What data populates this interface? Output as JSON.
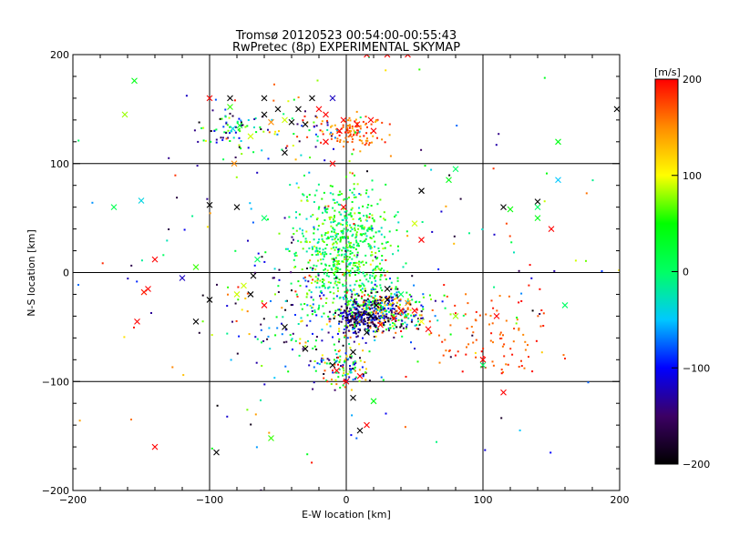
{
  "chart_data": {
    "type": "scatter",
    "title": "Tromsø 20120523 00:54:00-00:55:43",
    "subtitle": "RwPretec (8p) EXPERIMENTAL SKYMAP",
    "xlabel": "E-W location [km]",
    "ylabel": "N-S location [km]",
    "xlim": [
      -200,
      200
    ],
    "ylim": [
      -200,
      200
    ],
    "x_ticks": [
      -200,
      -100,
      0,
      100,
      200
    ],
    "y_ticks": [
      -200,
      -100,
      0,
      100,
      200
    ],
    "x_tick_labels": [
      "−200",
      "−100",
      "0",
      "100",
      "200"
    ],
    "y_tick_labels": [
      "−200",
      "−100",
      "0",
      "100",
      "200"
    ],
    "grid": true,
    "colorbar": {
      "label": "[m/s]",
      "range": [
        -200,
        200
      ],
      "ticks": [
        200,
        100,
        0,
        -100,
        -200
      ],
      "tick_labels": [
        "200",
        "100",
        "0",
        "−100",
        "−200"
      ],
      "colormap": [
        "#000000",
        "#3c0064",
        "#0000ff",
        "#00c8ff",
        "#00ff64",
        "#00ff00",
        "#ffff00",
        "#ff8c00",
        "#ff0000"
      ]
    },
    "series": [
      {
        "marker": "dot",
        "clusters": [
          {
            "center": [
              0,
              20
            ],
            "spread": [
              18,
              28
            ],
            "count": 650,
            "value_range": [
              -40,
              90
            ]
          },
          {
            "center": [
              28,
              -35
            ],
            "spread": [
              16,
              10
            ],
            "count": 380,
            "value_range": [
              -200,
              200
            ]
          },
          {
            "center": [
              12,
              -42
            ],
            "spread": [
              10,
              8
            ],
            "count": 200,
            "value_range": [
              -200,
              -80
            ]
          },
          {
            "center": [
              5,
              130
            ],
            "spread": [
              12,
              8
            ],
            "count": 110,
            "value_range": [
              130,
              200
            ]
          },
          {
            "center": [
              -85,
              132
            ],
            "spread": [
              10,
              10
            ],
            "count": 70,
            "value_range": [
              -200,
              100
            ]
          },
          {
            "center": [
              -5,
              -85
            ],
            "spread": [
              10,
              10
            ],
            "count": 120,
            "value_range": [
              -200,
              200
            ]
          },
          {
            "center": [
              110,
              -60
            ],
            "spread": [
              22,
              18
            ],
            "count": 90,
            "value_range": [
              150,
              200
            ]
          },
          {
            "center": [
              -30,
              -30
            ],
            "spread": [
              30,
              30
            ],
            "count": 160,
            "value_range": [
              -200,
              200
            ]
          },
          {
            "center": [
              -30,
              130
            ],
            "spread": [
              20,
              15
            ],
            "count": 50,
            "value_range": [
              -200,
              200
            ]
          },
          {
            "center": [
              0,
              0
            ],
            "spread": [
              90,
              90
            ],
            "count": 230,
            "value_range": [
              -200,
              200
            ]
          }
        ]
      },
      {
        "marker": "x",
        "points": [
          [
            -170,
            60,
            10
          ],
          [
            -155,
            176,
            40
          ],
          [
            -162,
            145,
            80
          ],
          [
            -150,
            66,
            -40
          ],
          [
            -145,
            -15,
            200
          ],
          [
            -153,
            -45,
            200
          ],
          [
            -148,
            -18,
            190
          ],
          [
            -140,
            12,
            200
          ],
          [
            -140,
            -160,
            200
          ],
          [
            -110,
            5,
            60
          ],
          [
            -100,
            160,
            200
          ],
          [
            -85,
            160,
            -200
          ],
          [
            -100,
            62,
            -200
          ],
          [
            -85,
            152,
            60
          ],
          [
            -83,
            132,
            -40
          ],
          [
            -78,
            135,
            30
          ],
          [
            -82,
            100,
            150
          ],
          [
            -60,
            160,
            -200
          ],
          [
            -55,
            138,
            150
          ],
          [
            -50,
            150,
            -200
          ],
          [
            -45,
            140,
            90
          ],
          [
            -40,
            138,
            -200
          ],
          [
            -35,
            150,
            -200
          ],
          [
            -30,
            136,
            -200
          ],
          [
            -25,
            160,
            -200
          ],
          [
            -20,
            150,
            200
          ],
          [
            -15,
            145,
            200
          ],
          [
            -10,
            160,
            -120
          ],
          [
            -5,
            130,
            200
          ],
          [
            -80,
            60,
            -200
          ],
          [
            -60,
            50,
            0
          ],
          [
            -45,
            110,
            -200
          ],
          [
            -68,
            -3,
            -200
          ],
          [
            -65,
            12,
            0
          ],
          [
            -100,
            -25,
            -200
          ],
          [
            -80,
            -20,
            90
          ],
          [
            -120,
            -5,
            -120
          ],
          [
            -110,
            -45,
            -200
          ],
          [
            -95,
            -165,
            -200
          ],
          [
            -55,
            -152,
            60
          ],
          [
            -75,
            -12,
            90
          ],
          [
            -70,
            -20,
            -200
          ],
          [
            -60,
            -30,
            200
          ],
          [
            -45,
            -50,
            -200
          ],
          [
            -30,
            -70,
            -200
          ],
          [
            -10,
            -85,
            -200
          ],
          [
            5,
            -73,
            -200
          ],
          [
            5,
            -115,
            -200
          ],
          [
            10,
            -145,
            -200
          ],
          [
            15,
            -140,
            200
          ],
          [
            20,
            -118,
            40
          ],
          [
            0,
            -100,
            200
          ],
          [
            -7,
            -90,
            200
          ],
          [
            10,
            -95,
            200
          ],
          [
            18,
            -40,
            -200
          ],
          [
            15,
            -55,
            -200
          ],
          [
            22,
            -30,
            -200
          ],
          [
            25,
            -48,
            200
          ],
          [
            35,
            -42,
            200
          ],
          [
            30,
            -25,
            -200
          ],
          [
            40,
            -35,
            200
          ],
          [
            45,
            -28,
            150
          ],
          [
            50,
            -35,
            200
          ],
          [
            55,
            -45,
            100
          ],
          [
            60,
            -52,
            200
          ],
          [
            30,
            -15,
            -200
          ],
          [
            40,
            -20,
            0
          ],
          [
            55,
            30,
            200
          ],
          [
            50,
            45,
            90
          ],
          [
            55,
            75,
            -200
          ],
          [
            80,
            95,
            0
          ],
          [
            75,
            85,
            40
          ],
          [
            80,
            -40,
            80
          ],
          [
            100,
            -80,
            200
          ],
          [
            100,
            -85,
            0
          ],
          [
            110,
            -40,
            200
          ],
          [
            120,
            58,
            50
          ],
          [
            140,
            50,
            40
          ],
          [
            140,
            65,
            -200
          ],
          [
            155,
            85,
            -50
          ],
          [
            150,
            40,
            200
          ],
          [
            160,
            -30,
            0
          ],
          [
            155,
            120,
            40
          ],
          [
            115,
            -110,
            200
          ],
          [
            115,
            60,
            -200
          ],
          [
            140,
            60,
            0
          ],
          [
            198,
            150,
            -200
          ],
          [
            20,
            130,
            200
          ],
          [
            18,
            140,
            200
          ],
          [
            8,
            136,
            200
          ],
          [
            -2,
            140,
            200
          ],
          [
            30,
            200,
            200
          ],
          [
            45,
            200,
            200
          ],
          [
            15,
            200,
            200
          ],
          [
            -60,
            145,
            -200
          ],
          [
            -70,
            125,
            90
          ],
          [
            -15,
            120,
            200
          ],
          [
            -10,
            100,
            200
          ],
          [
            -2,
            60,
            200
          ]
        ]
      }
    ]
  }
}
